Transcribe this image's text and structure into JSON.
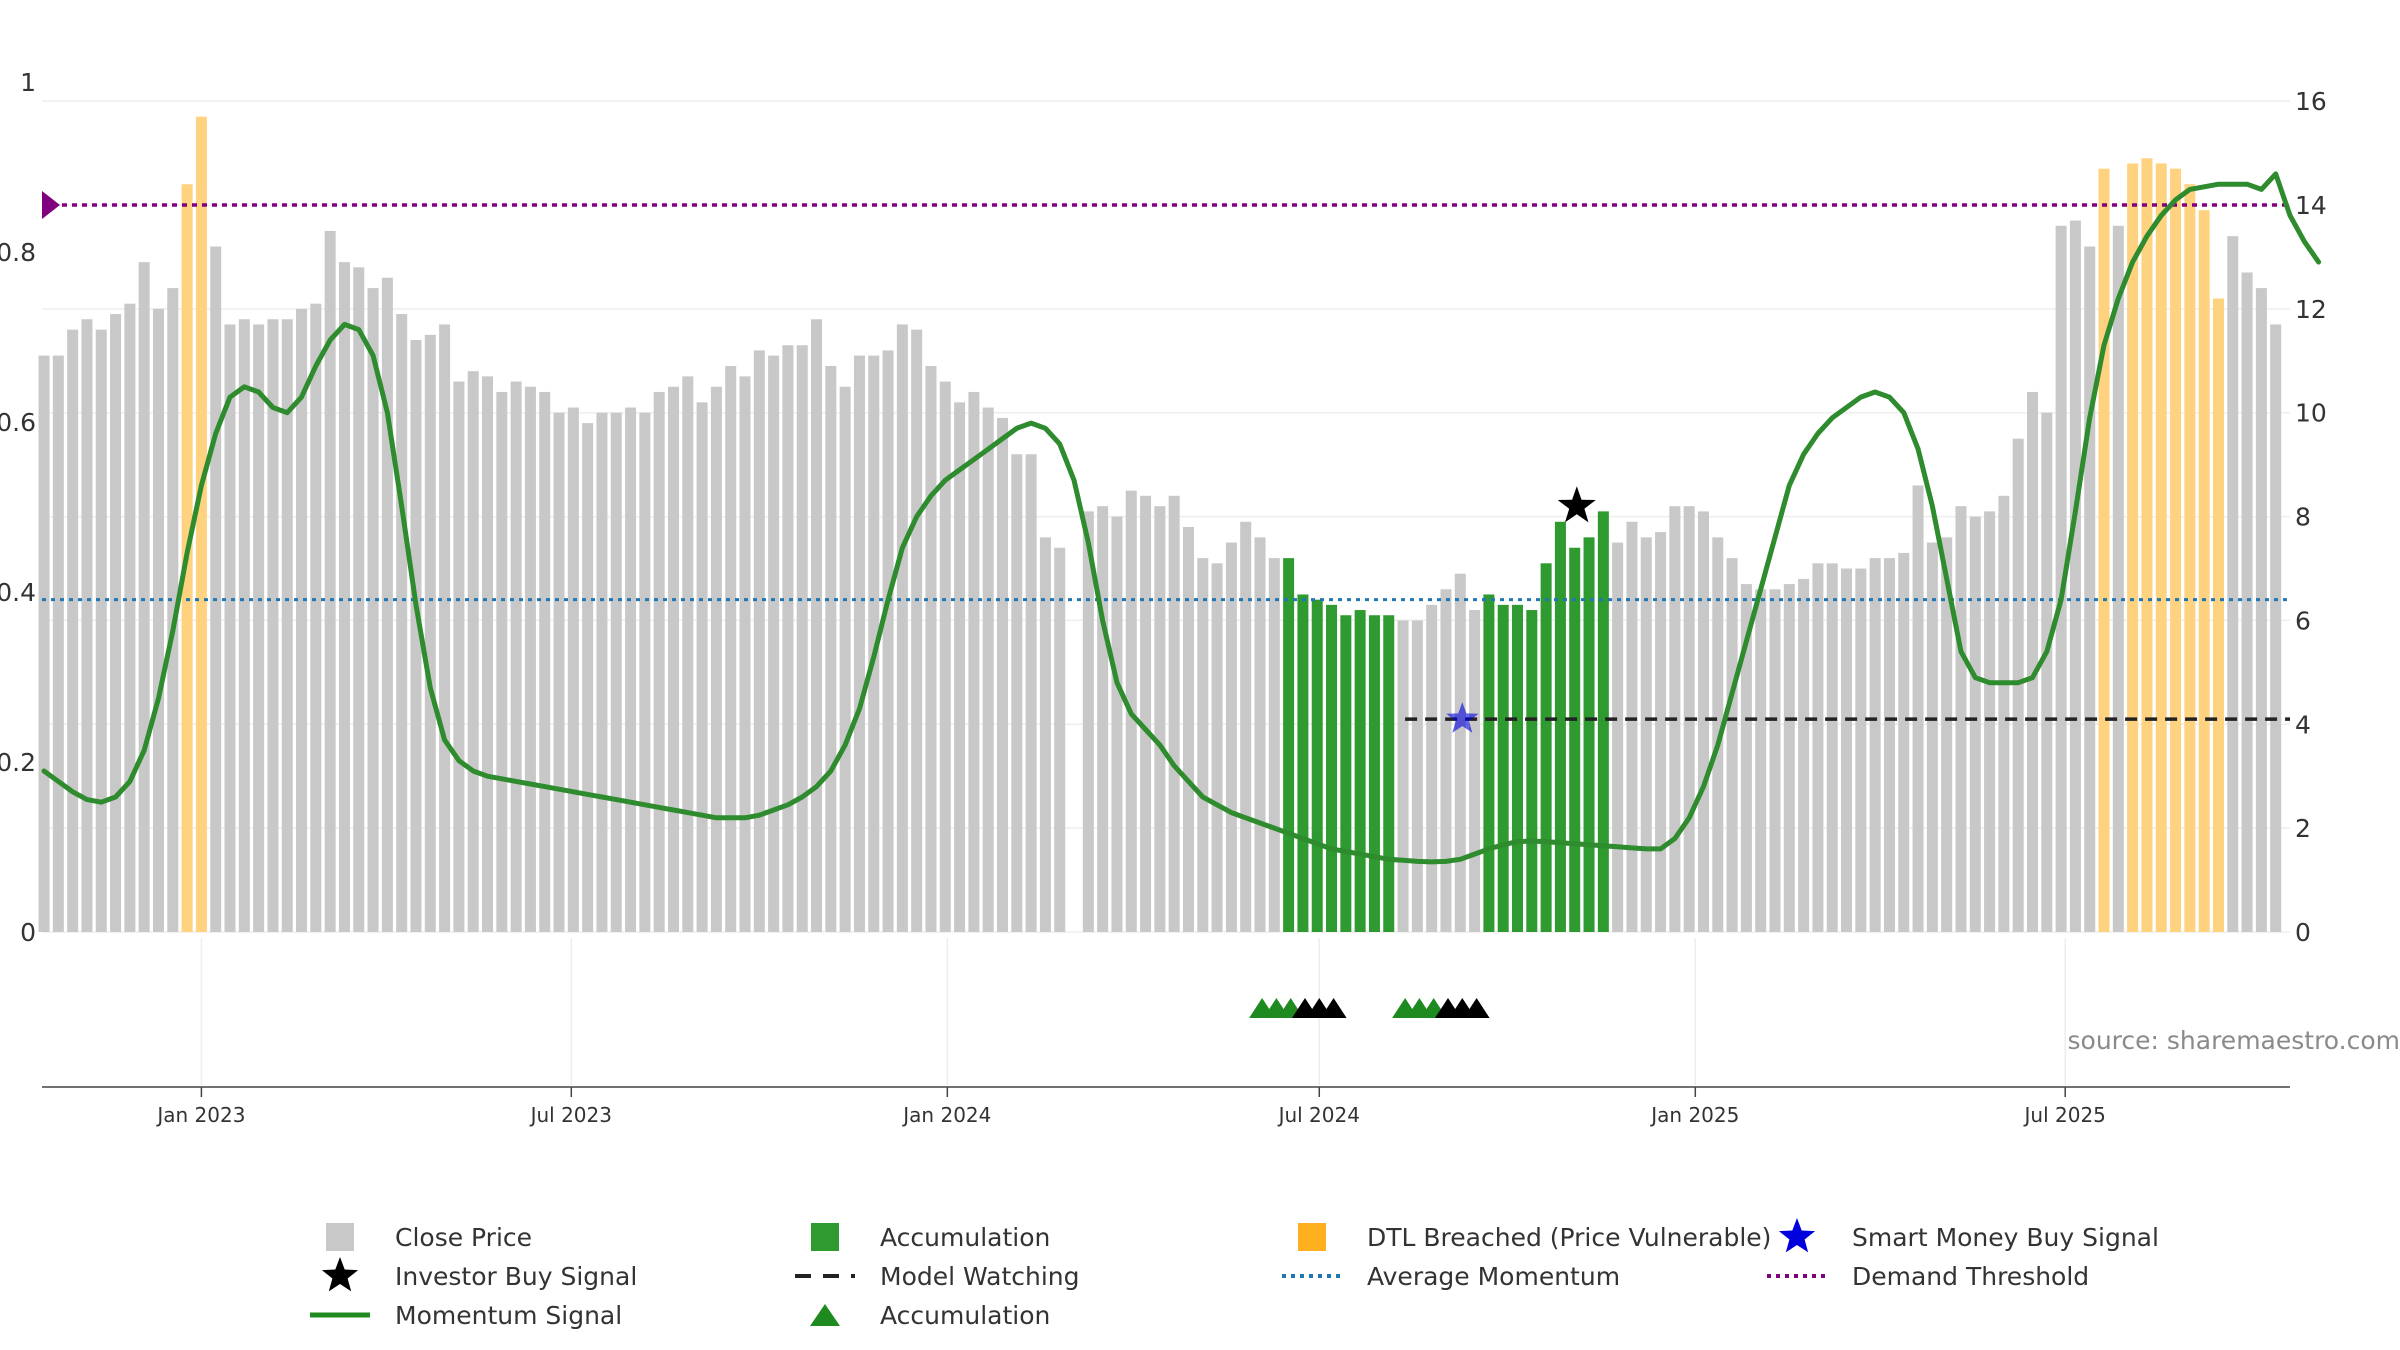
{
  "chart_data": {
    "type": "bar",
    "source": "source: sharemaestro.com",
    "x_ticks": [
      "Jan 2023",
      "Jul 2023",
      "Jan 2024",
      "Jul 2024",
      "Jan 2025",
      "Jul 2025"
    ],
    "x_tick_dates": [
      "2023-01-01",
      "2023-07-01",
      "2024-01-01",
      "2024-07-01",
      "2025-01-01",
      "2025-07-01"
    ],
    "xlim": [
      "2022-10-15",
      "2025-10-19"
    ],
    "left_axis": {
      "ticks": [
        "0",
        "0.2",
        "0.4",
        "0.6",
        "0.8",
        "1"
      ],
      "range": [
        0,
        1
      ]
    },
    "right_axis": {
      "ticks": [
        "0",
        "2",
        "4",
        "6",
        "8",
        "10",
        "12",
        "14",
        "16"
      ],
      "range": [
        0,
        16.6
      ]
    },
    "close_price": [
      11.1,
      11.1,
      11.6,
      11.8,
      11.6,
      11.9,
      12.1,
      12.9,
      12.0,
      12.4,
      14.4,
      15.7,
      13.2,
      11.7,
      11.8,
      11.7,
      11.8,
      11.8,
      12.0,
      12.1,
      13.5,
      12.9,
      12.8,
      12.4,
      12.6,
      11.9,
      11.4,
      11.5,
      11.7,
      10.6,
      10.8,
      10.7,
      10.4,
      10.6,
      10.5,
      10.4,
      10.0,
      10.1,
      9.8,
      10.0,
      10.0,
      10.1,
      10.0,
      10.4,
      10.5,
      10.7,
      10.2,
      10.5,
      10.9,
      10.7,
      11.2,
      11.1,
      11.3,
      11.3,
      11.8,
      10.9,
      10.5,
      11.1,
      11.1,
      11.2,
      11.7,
      11.6,
      10.9,
      10.6,
      10.2,
      10.4,
      10.1,
      9.9,
      9.2,
      9.2,
      7.6,
      7.4,
      0,
      8.1,
      8.2,
      8.0,
      8.5,
      8.4,
      8.2,
      8.4,
      7.8,
      7.2,
      7.1,
      7.5,
      7.9,
      7.6,
      7.2,
      7.2,
      6.5,
      6.4,
      6.3,
      6.1,
      6.2,
      6.1,
      6.1,
      6.0,
      6.0,
      6.3,
      6.6,
      6.9,
      6.2,
      6.5,
      6.3,
      6.3,
      6.2,
      7.1,
      7.9,
      7.4,
      7.6,
      8.1,
      7.5,
      7.9,
      7.6,
      7.7,
      8.2,
      8.2,
      8.1,
      7.6,
      7.2,
      6.7,
      6.6,
      6.6,
      6.7,
      6.8,
      7.1,
      7.1,
      7.0,
      7.0,
      7.2,
      7.2,
      7.3,
      8.6,
      7.5,
      7.6,
      8.2,
      8.0,
      8.1,
      8.4,
      9.5,
      10.4,
      10.0,
      13.6,
      13.7,
      13.2,
      14.7,
      13.6,
      14.8,
      14.9,
      14.8,
      14.7,
      14.4,
      13.9,
      12.2,
      13.4,
      12.7,
      12.4,
      11.7
    ],
    "momentum_signal": [
      3.1,
      2.9,
      2.7,
      2.55,
      2.5,
      2.6,
      2.9,
      3.5,
      4.5,
      5.8,
      7.3,
      8.6,
      9.6,
      10.3,
      10.5,
      10.4,
      10.1,
      10.0,
      10.3,
      10.9,
      11.4,
      11.7,
      11.6,
      11.1,
      10.0,
      8.2,
      6.3,
      4.7,
      3.7,
      3.3,
      3.1,
      3.0,
      2.95,
      2.9,
      2.85,
      2.8,
      2.75,
      2.7,
      2.65,
      2.6,
      2.55,
      2.5,
      2.45,
      2.4,
      2.35,
      2.3,
      2.25,
      2.2,
      2.2,
      2.2,
      2.25,
      2.35,
      2.45,
      2.6,
      2.8,
      3.1,
      3.6,
      4.3,
      5.3,
      6.4,
      7.4,
      8.0,
      8.4,
      8.7,
      8.9,
      9.1,
      9.3,
      9.5,
      9.7,
      9.8,
      9.7,
      9.4,
      8.7,
      7.5,
      6.0,
      4.8,
      4.2,
      3.9,
      3.6,
      3.2,
      2.9,
      2.6,
      2.45,
      2.3,
      2.2,
      2.1,
      2.0,
      1.9,
      1.8,
      1.7,
      1.6,
      1.55,
      1.5,
      1.45,
      1.4,
      1.38,
      1.36,
      1.35,
      1.36,
      1.4,
      1.5,
      1.6,
      1.68,
      1.74,
      1.75,
      1.74,
      1.72,
      1.7,
      1.68,
      1.66,
      1.64,
      1.62,
      1.6,
      1.6,
      1.8,
      2.2,
      2.8,
      3.6,
      4.6,
      5.6,
      6.6,
      7.6,
      8.6,
      9.2,
      9.6,
      9.9,
      10.1,
      10.3,
      10.4,
      10.3,
      10.0,
      9.3,
      8.2,
      6.8,
      5.4,
      4.9,
      4.8,
      4.8,
      4.8,
      4.9,
      5.4,
      6.4,
      8.1,
      9.9,
      11.3,
      12.2,
      12.9,
      13.4,
      13.8,
      14.1,
      14.3,
      14.35,
      14.4,
      14.4,
      14.4,
      14.3,
      14.6,
      13.8,
      13.3,
      12.9
    ],
    "accumulation_bars": {
      "indices": [
        87,
        88,
        89,
        90,
        91,
        92,
        93,
        94,
        101,
        102,
        103,
        104,
        105,
        106,
        107,
        108,
        109
      ],
      "values": [
        7.2,
        6.5,
        6.4,
        6.3,
        6.1,
        6.2,
        6.1,
        0,
        6.3,
        6.25,
        6.2,
        7.1,
        7.9,
        7.4,
        7.6,
        0,
        0
      ]
    },
    "dtl_breached_indices": [
      10,
      11,
      144,
      146,
      147,
      148,
      149,
      150,
      151,
      152
    ],
    "investor_buy_signal": {
      "date": "2024-11-04",
      "value": 8.2
    },
    "smart_money_buy_signal": {
      "date": "2024-09-09",
      "value": 4.1
    },
    "model_watching": {
      "start": "2024-08-12",
      "end": "2025-10-19",
      "value": 4.1
    },
    "average_momentum": 6.4,
    "demand_threshold": 14.0,
    "accumulation_markers": {
      "green": [
        "2024-06-03",
        "2024-06-10",
        "2024-06-17",
        "2024-08-12",
        "2024-08-19",
        "2024-08-26"
      ],
      "black": [
        "2024-06-24",
        "2024-07-01",
        "2024-07-08",
        "2024-09-02",
        "2024-09-09",
        "2024-09-16"
      ]
    },
    "colors": {
      "close_price": "#c8c8c8",
      "accumulation": "#2f9a2f",
      "dtl_breached": "#ffd27f",
      "momentum": "#2e8b2e",
      "average_momentum": "#1f77b4",
      "demand_threshold": "#800080",
      "smart_money": "#0000dd"
    },
    "legend": [
      "Close Price",
      "Accumulation",
      "DTL Breached (Price Vulnerable)",
      "Smart Money Buy Signal",
      "Investor Buy Signal",
      "Model Watching",
      "Average Momentum",
      "Demand Threshold",
      "Momentum Signal",
      "Accumulation"
    ]
  }
}
